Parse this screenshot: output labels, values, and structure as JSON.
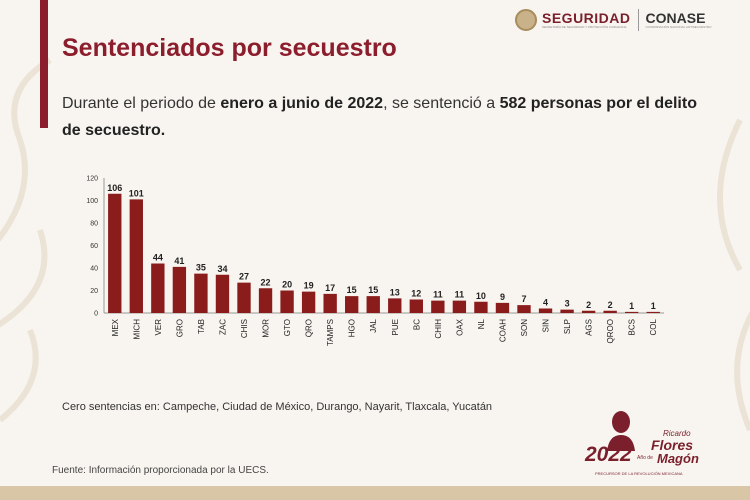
{
  "header": {
    "logo_seguridad": "SEGURIDAD",
    "logo_seguridad_sub": "SECRETARÍA DE SEGURIDAD Y PROTECCIÓN CIUDADANA",
    "logo_conase": "CONASE",
    "logo_conase_sub": "COORDINACIÓN NACIONAL ANTISECUESTRO"
  },
  "slide": {
    "title": "Sentenciados por secuestro",
    "intro_1": "Durante el periodo de ",
    "intro_period": "enero a junio de 2022",
    "intro_2": ", se sentenció a ",
    "intro_count": "582 personas por el delito de secuestro.",
    "note": "Cero sentencias en: Campeche, Ciudad de México, Durango, Nayarit, Tlaxcala, Yucatán",
    "source": "Fuente: Información proporcionada por la UECS."
  },
  "anniversary": {
    "year": "2022",
    "anio_de": "Año de",
    "name_1": "Ricardo",
    "name_2": "Flores",
    "name_3": "Magón",
    "precursor": "PRECURSOR DE LA REVOLUCIÓN MEXICANA"
  },
  "colors": {
    "bar": "#8b1c1c",
    "accent": "#8c1d2c"
  },
  "chart_data": {
    "type": "bar",
    "title": "",
    "xlabel": "",
    "ylabel": "",
    "ylim": [
      0,
      120
    ],
    "yticks": [
      0,
      20,
      40,
      60,
      80,
      100,
      120
    ],
    "categories": [
      "MEX",
      "MICH",
      "VER",
      "GRO",
      "TAB",
      "ZAC",
      "CHIS",
      "MOR",
      "GTO",
      "QRO",
      "TAMPS",
      "HGO",
      "JAL",
      "PUE",
      "BC",
      "CHIH",
      "OAX",
      "NL",
      "COAH",
      "SON",
      "SIN",
      "SLP",
      "AGS",
      "QROO",
      "BCS",
      "COL"
    ],
    "values": [
      106,
      101,
      44,
      41,
      35,
      34,
      27,
      22,
      20,
      19,
      17,
      15,
      15,
      13,
      12,
      11,
      11,
      10,
      9,
      7,
      4,
      3,
      2,
      2,
      1,
      1
    ]
  }
}
